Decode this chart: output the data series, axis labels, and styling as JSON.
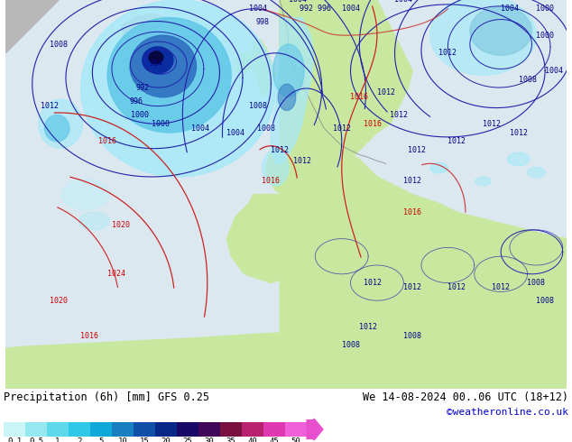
{
  "title_left": "Precipitation (6h) [mm] GFS 0.25",
  "title_right": "We 14-08-2024 00..06 UTC (18+12)",
  "credit": "©weatheronline.co.uk",
  "colorbar_levels": [
    0.1,
    0.5,
    1,
    2,
    5,
    10,
    15,
    20,
    25,
    30,
    35,
    40,
    45,
    50
  ],
  "colorbar_colors": [
    "#caf5f5",
    "#96e8f0",
    "#60d8ec",
    "#30c8e8",
    "#10a8d8",
    "#1880c0",
    "#1050a8",
    "#082888",
    "#180868",
    "#400858",
    "#781040",
    "#b82070",
    "#e038b0",
    "#f060d8"
  ],
  "land_color": "#c8e8a0",
  "ocean_color": "#e8f4f8",
  "precip_light": "#a8e8f8",
  "precip_mid": "#60c8e8",
  "precip_dark": "#1040a0",
  "precip_darkest": "#080840",
  "isobar_blue": "#2222aa",
  "isobar_red": "#cc2222",
  "label_blue": "#000088",
  "label_red": "#cc0000",
  "gray_land": "#b8b8b8",
  "figsize": [
    6.34,
    4.9
  ],
  "dpi": 100,
  "font_size_title": 8.5,
  "font_size_credit": 8,
  "font_size_label": 6,
  "font_size_tick": 6.5
}
